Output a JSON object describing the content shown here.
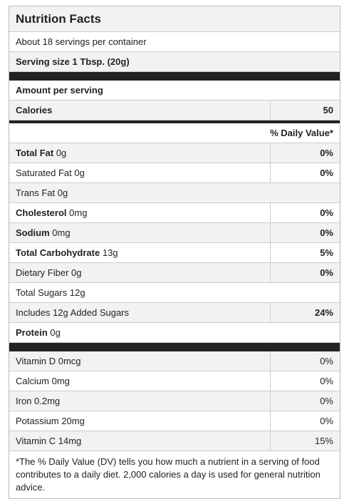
{
  "title": "Nutrition Facts",
  "servings": "About 18 servings per container",
  "serving_size": "Serving size 1 Tbsp. (20g)",
  "amount_label": "Amount per serving",
  "calories": {
    "label": "Calories",
    "value": "50"
  },
  "dv_header": "% Daily Value*",
  "nutrients": [
    {
      "name": "Total Fat",
      "amount": "0g",
      "dv": "0%",
      "bold": true
    },
    {
      "name": "Saturated Fat",
      "amount": "0g",
      "dv": "0%",
      "bold": false
    },
    {
      "name": "Trans Fat",
      "amount": "0g",
      "bold": false
    },
    {
      "name": "Cholesterol",
      "amount": "0mg",
      "dv": "0%",
      "bold": true
    },
    {
      "name": "Sodium",
      "amount": "0mg",
      "dv": "0%",
      "bold": true
    },
    {
      "name": "Total Carbohydrate",
      "amount": "13g",
      "dv": "5%",
      "bold": true
    },
    {
      "name": "Dietary Fiber",
      "amount": "0g",
      "dv": "0%",
      "bold": false
    },
    {
      "name": "Total Sugars",
      "amount": "12g",
      "bold": false
    },
    {
      "name": "Includes 12g Added Sugars",
      "dv": "24%",
      "bold": false
    },
    {
      "name": "Protein",
      "amount": "0g",
      "bold": true
    }
  ],
  "vitamins": [
    {
      "name": "Vitamin D",
      "amount": "0mcg",
      "dv": "0%"
    },
    {
      "name": "Calcium",
      "amount": "0mg",
      "dv": "0%"
    },
    {
      "name": "Iron",
      "amount": "0.2mg",
      "dv": "0%"
    },
    {
      "name": "Potassium",
      "amount": "20mg",
      "dv": "0%"
    },
    {
      "name": "Vitamin C",
      "amount": "14mg",
      "dv": "15%"
    }
  ],
  "footnote": "*The % Daily Value (DV) tells you how much a nutrient in a serving of food contributes to a daily diet. 2,000 calories a day is used for general nutrition advice."
}
